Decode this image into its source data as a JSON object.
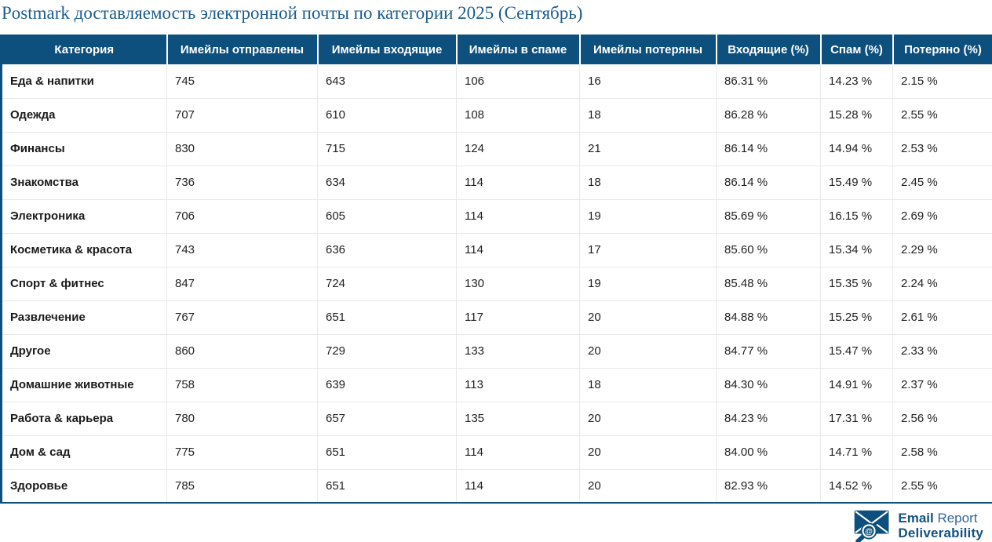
{
  "page": {
    "title": "Postmark доставляемость электронной почты по категории 2025 (Сентябрь)"
  },
  "colors": {
    "header_background": "#0e507d",
    "table_border": "#0e507d",
    "title_text": "#1d5c8e",
    "row_divider": "#e9e9e9",
    "body_text": "#222222",
    "logo_blue": "#14527e"
  },
  "table": {
    "columns": [
      "Категория",
      "Имейлы отправлены",
      "Имейлы входящие",
      "Имейлы в спаме",
      "Имейлы потеряны",
      "Входящие (%)",
      "Спам (%)",
      "Потеряно (%)"
    ],
    "rows": [
      [
        "Еда & напитки",
        "745",
        "643",
        "106",
        "16",
        "86.31 %",
        "14.23 %",
        "2.15 %"
      ],
      [
        "Одежда",
        "707",
        "610",
        "108",
        "18",
        "86.28 %",
        "15.28 %",
        "2.55 %"
      ],
      [
        "Финансы",
        "830",
        "715",
        "124",
        "21",
        "86.14 %",
        "14.94 %",
        "2.53 %"
      ],
      [
        "Знакомства",
        "736",
        "634",
        "114",
        "18",
        "86.14 %",
        "15.49 %",
        "2.45 %"
      ],
      [
        "Электроника",
        "706",
        "605",
        "114",
        "19",
        "85.69 %",
        "16.15 %",
        "2.69 %"
      ],
      [
        "Косметика & красота",
        "743",
        "636",
        "114",
        "17",
        "85.60 %",
        "15.34 %",
        "2.29 %"
      ],
      [
        "Спорт & фитнес",
        "847",
        "724",
        "130",
        "19",
        "85.48 %",
        "15.35 %",
        "2.24 %"
      ],
      [
        "Развлечение",
        "767",
        "651",
        "117",
        "20",
        "84.88 %",
        "15.25 %",
        "2.61 %"
      ],
      [
        "Другое",
        "860",
        "729",
        "133",
        "20",
        "84.77 %",
        "15.47 %",
        "2.33 %"
      ],
      [
        "Домашние животные",
        "758",
        "639",
        "113",
        "18",
        "84.30 %",
        "14.91 %",
        "2.37 %"
      ],
      [
        "Работа & карьера",
        "780",
        "657",
        "135",
        "20",
        "84.23 %",
        "17.31 %",
        "2.56 %"
      ],
      [
        "Дом & сад",
        "775",
        "651",
        "114",
        "20",
        "84.00 %",
        "14.71 %",
        "2.58 %"
      ],
      [
        "Здоровье",
        "785",
        "651",
        "114",
        "20",
        "82.93 %",
        "14.52 %",
        "2.55 %"
      ]
    ]
  },
  "chart_data": {
    "type": "table",
    "title": "Postmark доставляемость электронной почты по категории 2025 (Сентябрь)",
    "categories": [
      "Еда & напитки",
      "Одежда",
      "Финансы",
      "Знакомства",
      "Электроника",
      "Косметика & красота",
      "Спорт & фитнес",
      "Развлечение",
      "Другое",
      "Домашние животные",
      "Работа & карьера",
      "Дом & сад",
      "Здоровье"
    ],
    "series": [
      {
        "name": "Имейлы отправлены",
        "values": [
          745,
          707,
          830,
          736,
          706,
          743,
          847,
          767,
          860,
          758,
          780,
          775,
          785
        ]
      },
      {
        "name": "Имейлы входящие",
        "values": [
          643,
          610,
          715,
          634,
          605,
          636,
          724,
          651,
          729,
          639,
          657,
          651,
          651
        ]
      },
      {
        "name": "Имейлы в спаме",
        "values": [
          106,
          108,
          124,
          114,
          114,
          114,
          130,
          117,
          133,
          113,
          135,
          114,
          114
        ]
      },
      {
        "name": "Имейлы потеряны",
        "values": [
          16,
          18,
          21,
          18,
          19,
          17,
          19,
          20,
          20,
          18,
          20,
          20,
          20
        ]
      },
      {
        "name": "Входящие (%)",
        "values": [
          86.31,
          86.28,
          86.14,
          86.14,
          85.69,
          85.6,
          85.48,
          84.88,
          84.77,
          84.3,
          84.23,
          84.0,
          82.93
        ]
      },
      {
        "name": "Спам (%)",
        "values": [
          14.23,
          15.28,
          14.94,
          15.49,
          16.15,
          15.34,
          15.35,
          15.25,
          15.47,
          14.91,
          17.31,
          14.71,
          14.52
        ]
      },
      {
        "name": "Потеряно (%)",
        "values": [
          2.15,
          2.55,
          2.53,
          2.45,
          2.69,
          2.29,
          2.24,
          2.61,
          2.33,
          2.37,
          2.56,
          2.58,
          2.55
        ]
      }
    ]
  },
  "footer": {
    "logo": {
      "word1": "Email",
      "word2": "Report",
      "word3": "Deliverability",
      "at_symbol": "@"
    }
  }
}
